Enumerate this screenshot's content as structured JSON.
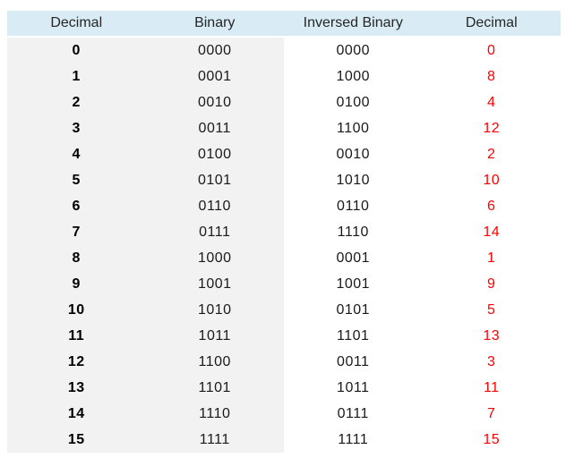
{
  "colors": {
    "header_bg": "#d9ecf5",
    "stripe_bg": "#f2f2f2",
    "result_text": "#ff0000",
    "header_text": "#262626",
    "body_text": "#1a1a1a"
  },
  "table": {
    "headers": [
      "Decimal",
      "Binary",
      "Inversed Binary",
      "Decimal"
    ],
    "rows": [
      {
        "decimal": "0",
        "binary": "0000",
        "inversed_binary": "0000",
        "inversed_decimal": "0"
      },
      {
        "decimal": "1",
        "binary": "0001",
        "inversed_binary": "1000",
        "inversed_decimal": "8"
      },
      {
        "decimal": "2",
        "binary": "0010",
        "inversed_binary": "0100",
        "inversed_decimal": "4"
      },
      {
        "decimal": "3",
        "binary": "0011",
        "inversed_binary": "1100",
        "inversed_decimal": "12"
      },
      {
        "decimal": "4",
        "binary": "0100",
        "inversed_binary": "0010",
        "inversed_decimal": "2"
      },
      {
        "decimal": "5",
        "binary": "0101",
        "inversed_binary": "1010",
        "inversed_decimal": "10"
      },
      {
        "decimal": "6",
        "binary": "0110",
        "inversed_binary": "0110",
        "inversed_decimal": "6"
      },
      {
        "decimal": "7",
        "binary": "0111",
        "inversed_binary": "1110",
        "inversed_decimal": "14"
      },
      {
        "decimal": "8",
        "binary": "1000",
        "inversed_binary": "0001",
        "inversed_decimal": "1"
      },
      {
        "decimal": "9",
        "binary": "1001",
        "inversed_binary": "1001",
        "inversed_decimal": "9"
      },
      {
        "decimal": "10",
        "binary": "1010",
        "inversed_binary": "0101",
        "inversed_decimal": "5"
      },
      {
        "decimal": "11",
        "binary": "1011",
        "inversed_binary": "1101",
        "inversed_decimal": "13"
      },
      {
        "decimal": "12",
        "binary": "1100",
        "inversed_binary": "0011",
        "inversed_decimal": "3"
      },
      {
        "decimal": "13",
        "binary": "1101",
        "inversed_binary": "1011",
        "inversed_decimal": "11"
      },
      {
        "decimal": "14",
        "binary": "1110",
        "inversed_binary": "0111",
        "inversed_decimal": "7"
      },
      {
        "decimal": "15",
        "binary": "1111",
        "inversed_binary": "1111",
        "inversed_decimal": "15"
      }
    ]
  },
  "chart_data": {
    "type": "table",
    "title": "",
    "columns": [
      "Decimal",
      "Binary",
      "Inversed Binary",
      "Decimal"
    ],
    "rows": [
      [
        0,
        "0000",
        "0000",
        0
      ],
      [
        1,
        "0001",
        "1000",
        8
      ],
      [
        2,
        "0010",
        "0100",
        4
      ],
      [
        3,
        "0011",
        "1100",
        12
      ],
      [
        4,
        "0100",
        "0010",
        2
      ],
      [
        5,
        "0101",
        "1010",
        10
      ],
      [
        6,
        "0110",
        "0110",
        6
      ],
      [
        7,
        "0111",
        "1110",
        14
      ],
      [
        8,
        "1000",
        "0001",
        1
      ],
      [
        9,
        "1001",
        "1001",
        9
      ],
      [
        10,
        "1010",
        "0101",
        5
      ],
      [
        11,
        "1011",
        "1101",
        13
      ],
      [
        12,
        "1100",
        "0011",
        3
      ],
      [
        13,
        "1101",
        "1011",
        11
      ],
      [
        14,
        "1110",
        "0111",
        7
      ],
      [
        15,
        "1111",
        "1111",
        15
      ]
    ],
    "layout_hints": {
      "header_background": "#d9ecf5",
      "left_two_columns_background": "#f2f2f2",
      "last_column_text_color": "#ff0000",
      "first_column_bold": true
    }
  }
}
